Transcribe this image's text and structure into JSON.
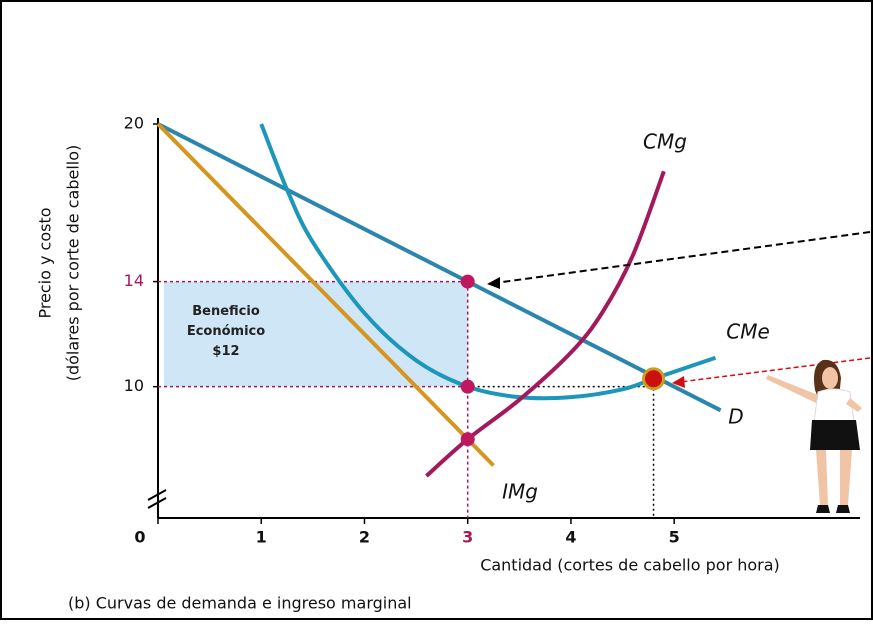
{
  "chart_data": {
    "type": "line",
    "ylabel": [
      "Precio y costo",
      "(dólares por corte de cabello)"
    ],
    "xlabel": "Cantidad (cortes de cabello por hora)",
    "caption": "(b) Curvas de demanda e ingreso marginal",
    "xlim": [
      0,
      6.8
    ],
    "ylim": [
      5,
      20
    ],
    "xticks": [
      0,
      1,
      2,
      3,
      4,
      5
    ],
    "yticks": [
      10,
      14,
      20
    ],
    "series": [
      {
        "name": "D",
        "color": "#2b86ad",
        "x": [
          0,
          5.45
        ],
        "values": [
          20,
          9.1
        ]
      },
      {
        "name": "IMg",
        "color": "#d4961e",
        "x": [
          0,
          3.25
        ],
        "values": [
          20,
          7
        ]
      },
      {
        "name": "CMe",
        "color": "#1d97b9",
        "x": [
          1,
          1.25,
          1.5,
          2,
          2.5,
          3,
          3.5,
          4,
          4.5,
          4.8,
          5.4
        ],
        "values": [
          20,
          17.5,
          15.5,
          12.8,
          11,
          10,
          9.6,
          9.6,
          9.9,
          10.3,
          11.1
        ]
      },
      {
        "name": "CMg",
        "color": "#a3195b",
        "x": [
          2.6,
          3,
          3.5,
          4,
          4.3,
          4.6,
          4.9
        ],
        "values": [
          6.6,
          8,
          9.5,
          11.3,
          12.8,
          15,
          18.2
        ]
      }
    ],
    "points": {
      "color": "#c0185e",
      "x": [
        3,
        3,
        3,
        4.8
      ],
      "values": [
        14,
        10,
        8,
        10.3
      ]
    },
    "profit_area": {
      "x": [
        0,
        3
      ],
      "y": [
        10,
        14
      ],
      "color": "#cfe6f7",
      "label": [
        "Beneficio",
        "Económico",
        "$12"
      ]
    }
  }
}
